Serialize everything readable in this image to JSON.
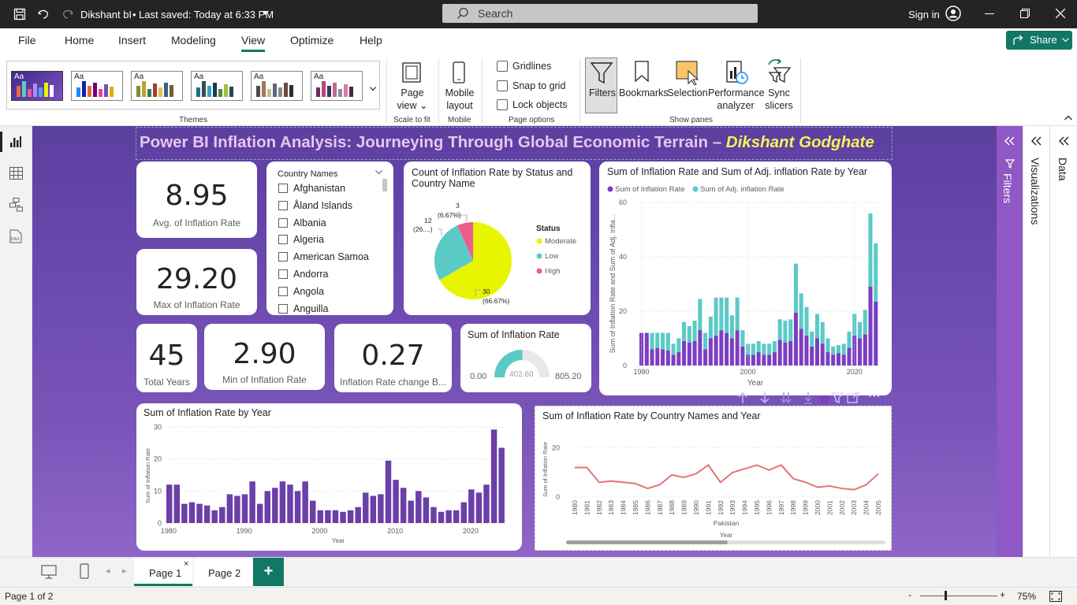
{
  "titlebar": {
    "doc": "Dikshant bI",
    "saved": "Last saved: Today at 6:33 PM",
    "search": "Search",
    "signin": "Sign in"
  },
  "tabs": [
    "File",
    "Home",
    "Insert",
    "Modeling",
    "View",
    "Optimize",
    "Help"
  ],
  "share": "Share",
  "ribbon": {
    "themes_label": "Themes",
    "page_view": "Page view",
    "scale": "Scale to fit",
    "mobile_layout": "Mobile layout",
    "mobile": "Mobile",
    "gridlines": "Gridlines",
    "snap": "Snap to grid",
    "lock": "Lock objects",
    "page_options": "Page options",
    "filters": "Filters",
    "bookmarks": "Bookmarks",
    "selection": "Selection",
    "performance": "Performance analyzer",
    "sync": "Sync slicers",
    "show_panes": "Show panes",
    "theme_aa": "Aa"
  },
  "report_title": {
    "main": "Power BI Inflation Analysis: Journeying Through Global Economic Terrain – ",
    "author": "Dikshant Godghate"
  },
  "kpis": {
    "avg": {
      "value": "8.95",
      "label": "Avg. of Inflation Rate"
    },
    "max": {
      "value": "29.20",
      "label": "Max of Inflation Rate"
    },
    "years": {
      "value": "45",
      "label": "Total Years"
    },
    "min": {
      "value": "2.90",
      "label": "Min of Inflation Rate"
    },
    "change": {
      "value": "0.27",
      "label": "Inflation Rate change B..."
    }
  },
  "slicer": {
    "title": "Country Names",
    "items": [
      "Afghanistan",
      "Åland Islands",
      "Albania",
      "Algeria",
      "American Samoa",
      "Andorra",
      "Angola",
      "Anguilla"
    ]
  },
  "pie": {
    "title": "Count of Inflation Rate by Status and Country Name",
    "legend_title": "Status",
    "labels": {
      "moderate": "30",
      "moderate_pct": "(66.67%)",
      "low": "12",
      "low_pct": "(26....)",
      "high": "3",
      "high_pct": "(6.67%)"
    }
  },
  "gauge": {
    "title": "Sum of Inflation Rate",
    "min": "0.00",
    "value": "402.60",
    "max": "805.20"
  },
  "panes": {
    "filters": "Filters",
    "visualizations": "Visualizations",
    "data": "Data"
  },
  "pages": [
    "Page 1",
    "Page 2"
  ],
  "status": {
    "page": "Page 1 of 2",
    "zoom": "75%"
  },
  "chart_data": [
    {
      "type": "pie",
      "title": "Count of Inflation Rate by Status and Country Name",
      "legend": "Status",
      "series": [
        {
          "name": "Moderate",
          "value": 30,
          "color": "#e8f500"
        },
        {
          "name": "Low",
          "value": 12,
          "color": "#5bcac6"
        },
        {
          "name": "High",
          "value": 3,
          "color": "#ec5d8f"
        }
      ]
    },
    {
      "type": "bar",
      "title": "Sum of Inflation Rate and Sum of Adj. inflation Rate by Year",
      "stacked": true,
      "xlabel": "Year",
      "ylabel": "Sum of Inflation Rate and Sum of Adj. infla...",
      "ylim": [
        0,
        60
      ],
      "yticks": [
        0,
        20,
        40,
        60
      ],
      "xticks": [
        1980,
        2000,
        2020
      ],
      "x": [
        1980,
        1981,
        1982,
        1983,
        1984,
        1985,
        1986,
        1987,
        1988,
        1989,
        1990,
        1991,
        1992,
        1993,
        1994,
        1995,
        1996,
        1997,
        1998,
        1999,
        2000,
        2001,
        2002,
        2003,
        2004,
        2005,
        2006,
        2007,
        2008,
        2009,
        2010,
        2011,
        2012,
        2013,
        2014,
        2015,
        2016,
        2017,
        2018,
        2019,
        2020,
        2021,
        2022,
        2023,
        2024
      ],
      "series": [
        {
          "name": "Sum of Inflation Rate",
          "color": "#7b3fc2",
          "values": [
            12,
            12,
            6,
            6.5,
            6,
            5.5,
            4,
            5,
            9,
            8.5,
            9,
            13,
            6,
            10,
            11,
            13,
            12,
            10,
            13,
            7,
            4,
            4,
            5,
            4,
            4,
            5,
            9.5,
            8.5,
            9,
            19.5,
            13.5,
            11,
            7,
            10,
            8,
            5,
            4,
            4.5,
            4,
            6.5,
            11,
            10,
            11.5,
            29,
            23.5
          ]
        },
        {
          "name": "Sum of Adj. inflation Rate",
          "color": "#5bcac6",
          "values": [
            0,
            0,
            6,
            5.5,
            6,
            6.5,
            4,
            5,
            7,
            6,
            7.5,
            11.5,
            6,
            8,
            14,
            12,
            13,
            8.5,
            12,
            6,
            4,
            4,
            4,
            4,
            4,
            4,
            7.5,
            8,
            8,
            18,
            13,
            10.5,
            5.5,
            9,
            8,
            5,
            3,
            3,
            4,
            6,
            8,
            6,
            9,
            27,
            21.5
          ]
        }
      ]
    },
    {
      "type": "bar",
      "title": "Sum of Inflation Rate by Year",
      "xlabel": "Year",
      "ylabel": "Sum of Inflation Rate",
      "ylim": [
        0,
        30
      ],
      "yticks": [
        0,
        10,
        20,
        30
      ],
      "xticks": [
        1980,
        1990,
        2000,
        2010,
        2020
      ],
      "x": [
        1980,
        1981,
        1982,
        1983,
        1984,
        1985,
        1986,
        1987,
        1988,
        1989,
        1990,
        1991,
        1992,
        1993,
        1994,
        1995,
        1996,
        1997,
        1998,
        1999,
        2000,
        2001,
        2002,
        2003,
        2004,
        2005,
        2006,
        2007,
        2008,
        2009,
        2010,
        2011,
        2012,
        2013,
        2014,
        2015,
        2016,
        2017,
        2018,
        2019,
        2020,
        2021,
        2022,
        2023,
        2024
      ],
      "values": [
        12,
        12,
        6,
        6.5,
        6,
        5.5,
        4,
        5,
        9,
        8.5,
        9,
        13,
        6,
        10,
        11,
        13,
        12,
        10,
        13,
        7,
        4,
        4,
        4,
        3.5,
        4,
        5,
        9.5,
        8.5,
        9,
        19.5,
        13.5,
        11,
        7,
        10,
        8,
        5,
        3.5,
        4,
        4,
        6.5,
        10.5,
        9.5,
        12,
        29.2,
        23.5
      ],
      "color": "#6b3fa8"
    },
    {
      "type": "line",
      "title": "Sum of Inflation Rate by Country Names and Year",
      "xlabel": "Year",
      "xgroup": "Pakistan",
      "ylabel": "Sum of Inflation Rate",
      "yticks": [
        0,
        20
      ],
      "x": [
        1980,
        1981,
        1982,
        1983,
        1984,
        1985,
        1986,
        1987,
        1988,
        1989,
        1990,
        1991,
        1992,
        1993,
        1994,
        1995,
        1996,
        1997,
        1998,
        1999,
        2000,
        2001,
        2002,
        2003,
        2004,
        2005
      ],
      "values": [
        12,
        12,
        6,
        6.5,
        6,
        5.5,
        3.5,
        5,
        9,
        8,
        9.5,
        13,
        6,
        10,
        11.5,
        13,
        11,
        13,
        7.5,
        6,
        4,
        4.5,
        3.5,
        3,
        5,
        9.5
      ],
      "color": "#e8707a"
    }
  ]
}
